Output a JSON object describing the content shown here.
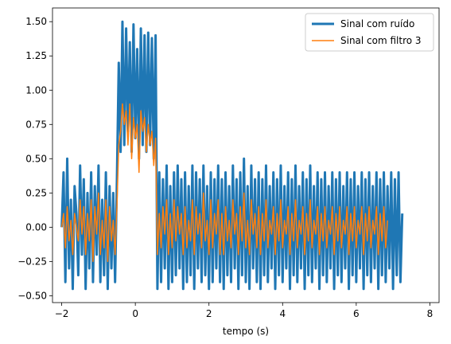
{
  "chart_data": {
    "type": "line",
    "title": "",
    "xlabel": "tempo (s)",
    "ylabel": "",
    "xlim": [
      -2.25,
      8.25
    ],
    "ylim": [
      -0.55,
      1.6
    ],
    "xticks": [
      -2,
      0,
      2,
      4,
      6,
      8
    ],
    "xtick_labels": [
      "−2",
      "0",
      "2",
      "4",
      "6",
      "8"
    ],
    "yticks": [
      -0.5,
      -0.25,
      0.0,
      0.25,
      0.5,
      0.75,
      1.0,
      1.25,
      1.5
    ],
    "ytick_labels": [
      "−0.50",
      "−0.25",
      "0.00",
      "0.25",
      "0.50",
      "0.75",
      "1.00",
      "1.25",
      "1.50"
    ],
    "grid": false,
    "legend_position": "top-right",
    "series": [
      {
        "name": "Sinal com ruído",
        "color": "#1f77b4",
        "x_start": -2.0,
        "x_step": 0.05,
        "y": [
          0.0,
          0.4,
          -0.4,
          0.5,
          -0.3,
          0.2,
          -0.45,
          0.3,
          0.1,
          -0.35,
          0.45,
          -0.2,
          0.35,
          -0.45,
          0.25,
          -0.3,
          0.4,
          -0.4,
          0.3,
          -0.2,
          0.45,
          -0.4,
          0.2,
          -0.35,
          0.4,
          -0.45,
          0.3,
          -0.3,
          0.25,
          -0.4,
          0.35,
          1.2,
          0.55,
          1.5,
          0.6,
          1.45,
          0.7,
          1.35,
          0.55,
          1.48,
          0.65,
          1.3,
          0.5,
          1.45,
          0.6,
          1.4,
          0.55,
          1.42,
          0.6,
          1.38,
          0.5,
          1.4,
          -0.45,
          0.4,
          -0.4,
          0.35,
          -0.3,
          0.45,
          -0.45,
          0.3,
          -0.4,
          0.4,
          -0.35,
          0.45,
          -0.3,
          0.35,
          -0.45,
          0.4,
          -0.4,
          0.3,
          -0.35,
          0.45,
          -0.45,
          0.4,
          -0.3,
          0.35,
          -0.4,
          0.45,
          -0.35,
          0.3,
          -0.45,
          0.4,
          -0.4,
          0.35,
          -0.3,
          0.45,
          -0.4,
          0.35,
          -0.45,
          0.4,
          -0.35,
          0.3,
          -0.4,
          0.45,
          -0.3,
          0.35,
          -0.45,
          0.4,
          -0.35,
          0.5,
          -0.4,
          0.3,
          -0.45,
          0.45,
          -0.3,
          0.35,
          -0.4,
          0.4,
          -0.45,
          0.35,
          -0.35,
          0.45,
          -0.4,
          0.3,
          -0.3,
          0.4,
          -0.45,
          0.35,
          -0.35,
          0.45,
          -0.4,
          0.3,
          -0.3,
          0.4,
          -0.45,
          0.35,
          -0.35,
          0.45,
          -0.4,
          0.3,
          -0.3,
          0.4,
          -0.45,
          0.35,
          -0.35,
          0.45,
          -0.4,
          0.3,
          -0.3,
          0.4,
          -0.45,
          0.35,
          -0.35,
          0.4,
          -0.4,
          0.3,
          -0.3,
          0.4,
          -0.45,
          0.35,
          -0.35,
          0.4,
          -0.4,
          0.3,
          -0.3,
          0.4,
          -0.45,
          0.35,
          -0.35,
          0.4,
          -0.4,
          0.3,
          -0.3,
          0.4,
          -0.45,
          0.35,
          -0.35,
          0.4,
          -0.4,
          0.3,
          -0.3,
          0.4,
          -0.45,
          0.35,
          -0.35,
          0.4,
          -0.4,
          0.3,
          -0.3,
          0.4,
          -0.45,
          0.35,
          -0.35,
          0.4,
          -0.4,
          0.1
        ]
      },
      {
        "name": "Sinal com filtro 3",
        "color": "#ff7f0e",
        "x_start": -2.0,
        "x_step": 0.05,
        "y": [
          0.0,
          0.1,
          -0.15,
          0.15,
          -0.1,
          0.05,
          -0.2,
          0.1,
          0.0,
          -0.1,
          0.2,
          -0.05,
          0.15,
          -0.2,
          0.1,
          -0.1,
          0.2,
          -0.25,
          0.15,
          -0.05,
          0.25,
          -0.2,
          0.05,
          -0.15,
          0.2,
          -0.25,
          0.15,
          -0.1,
          0.05,
          -0.2,
          0.15,
          0.6,
          0.7,
          0.9,
          0.75,
          0.85,
          0.6,
          0.9,
          0.5,
          0.8,
          0.65,
          0.75,
          0.4,
          0.85,
          0.7,
          0.8,
          0.55,
          0.75,
          0.6,
          0.7,
          0.45,
          0.65,
          -0.2,
          0.1,
          -0.15,
          0.15,
          -0.05,
          0.2,
          -0.2,
          0.1,
          -0.15,
          0.2,
          -0.1,
          0.15,
          -0.05,
          0.1,
          -0.2,
          0.15,
          -0.15,
          0.05,
          -0.1,
          0.2,
          -0.2,
          0.15,
          -0.05,
          0.1,
          -0.15,
          0.25,
          -0.1,
          0.05,
          -0.2,
          0.2,
          -0.15,
          0.1,
          -0.05,
          0.2,
          -0.2,
          0.1,
          -0.2,
          0.15,
          -0.1,
          0.05,
          -0.15,
          0.2,
          -0.05,
          0.1,
          -0.2,
          0.15,
          -0.1,
          0.25,
          -0.15,
          0.05,
          -0.2,
          0.2,
          -0.05,
          0.1,
          -0.15,
          0.15,
          -0.2,
          0.1,
          -0.1,
          0.2,
          -0.15,
          0.05,
          -0.05,
          0.15,
          -0.2,
          0.1,
          -0.1,
          0.2,
          -0.15,
          0.05,
          -0.05,
          0.15,
          -0.2,
          0.1,
          -0.1,
          0.2,
          -0.15,
          0.05,
          -0.05,
          0.15,
          -0.2,
          0.1,
          -0.1,
          0.2,
          -0.15,
          0.05,
          -0.05,
          0.15,
          -0.2,
          0.1,
          -0.1,
          0.15,
          -0.15,
          0.05,
          -0.05,
          0.15,
          -0.2,
          0.1,
          -0.1,
          0.15,
          -0.15,
          0.05,
          -0.05,
          0.15,
          -0.2,
          0.1,
          -0.1,
          0.15,
          -0.15,
          0.05,
          -0.05,
          0.15,
          -0.2,
          0.1,
          -0.1,
          0.15,
          -0.15,
          0.05,
          -0.05,
          0.15,
          -0.2,
          0.1,
          -0.1,
          0.15,
          -0.15,
          0.05
        ]
      }
    ]
  }
}
